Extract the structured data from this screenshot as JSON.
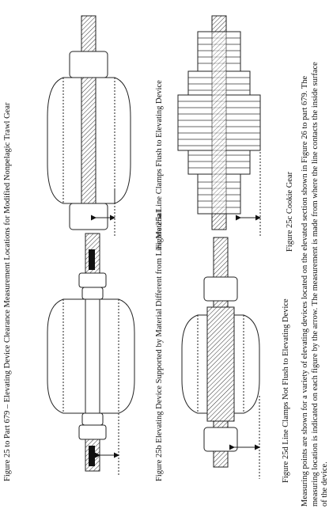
{
  "document": {
    "title": "Figure 25 to Part 679 – Elevating Device Clearance Measurement Locations for Modified Nonpelagic Trawl Gear",
    "figures": [
      {
        "id": "25a",
        "caption": "Figure 25a  Line Clamps Flush to Elevating Device"
      },
      {
        "id": "25b",
        "caption": "Figure 25b  Elevating Device Supported by Material Different from Line Material"
      },
      {
        "id": "25c",
        "caption": "Figure 25c  Cookie Gear"
      },
      {
        "id": "25d",
        "caption": "Figure 25d  Line Clamps Not Flush to Elevating Device"
      }
    ],
    "footnote_lines": [
      "Measuring points are shown for a variety of elevating devices located on the elevated section shown in Figure 26 to part 679.  The",
      "measuring location is indicated on each figure by the arrow.  The measurement is made from where the line contacts the inside surface",
      "of the device."
    ]
  }
}
